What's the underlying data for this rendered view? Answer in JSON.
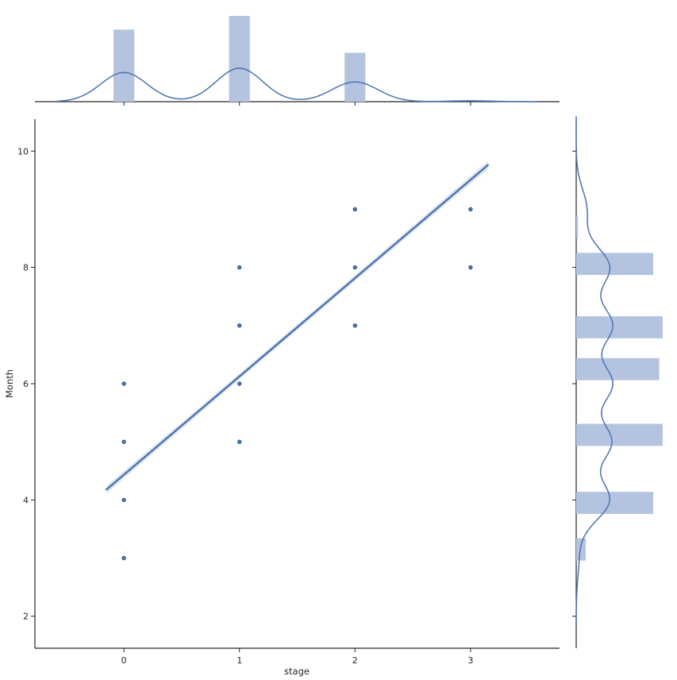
{
  "chart_data": {
    "type": "jointplot-regression",
    "xlabel": "stage",
    "ylabel": "Month",
    "xlim": [
      -0.77,
      3.77
    ],
    "ylim": [
      1.45,
      10.55
    ],
    "xticks": [
      0,
      1,
      2,
      3
    ],
    "yticks": [
      2,
      4,
      6,
      8,
      10
    ],
    "colors": {
      "accent": "#4c72b0",
      "hist": "#b4c4e0",
      "axis": "#262626",
      "ci": "#dde4f1"
    },
    "scatter": {
      "x": [
        0,
        0,
        0,
        0,
        1,
        1,
        1,
        1,
        2,
        2,
        2,
        3,
        3
      ],
      "y": [
        3,
        4,
        5,
        6,
        5,
        6,
        7,
        8,
        7,
        8,
        9,
        8,
        9
      ]
    },
    "regression": {
      "x": [
        -0.15,
        3.15
      ],
      "y": [
        4.18,
        9.76
      ],
      "ci_halfwidth": [
        0.06,
        0.02,
        0.06
      ]
    },
    "marginal_x": {
      "bins": [
        {
          "center": 0,
          "height": 0.84
        },
        {
          "center": 1,
          "height": 1.0
        },
        {
          "center": 2,
          "height": 0.57
        },
        {
          "center": 3,
          "height": 0.0
        }
      ],
      "bin_width": 0.18,
      "kde": {
        "peaks": [
          [
            0,
            0.34
          ],
          [
            1,
            0.39
          ],
          [
            2,
            0.23
          ],
          [
            3,
            0.01
          ]
        ],
        "sigma": 0.2,
        "range": [
          -0.58,
          3.58
        ]
      }
    },
    "marginal_y": {
      "bins": [
        {
          "center": 3.15,
          "height": 0.11
        },
        {
          "center": 3.95,
          "height": 0.89
        },
        {
          "center": 5.12,
          "height": 1.0
        },
        {
          "center": 6.25,
          "height": 0.96
        },
        {
          "center": 6.97,
          "height": 1.0
        },
        {
          "center": 8.06,
          "height": 0.89
        },
        {
          "center": 8.7,
          "height": 0.02
        }
      ],
      "bin_width": 0.38,
      "kde": {
        "peaks": [
          [
            3,
            0.03
          ],
          [
            4,
            0.38
          ],
          [
            5,
            0.4
          ],
          [
            6,
            0.41
          ],
          [
            7,
            0.41
          ],
          [
            8,
            0.38
          ],
          [
            9,
            0.12
          ]
        ],
        "sigma": 0.35,
        "range": [
          1.9,
          10.6
        ]
      }
    }
  }
}
